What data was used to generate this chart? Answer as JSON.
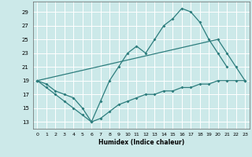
{
  "xlabel": "Humidex (Indice chaleur)",
  "xlim": [
    -0.5,
    23.5
  ],
  "ylim": [
    12,
    30.5
  ],
  "xticks": [
    0,
    1,
    2,
    3,
    4,
    5,
    6,
    7,
    8,
    9,
    10,
    11,
    12,
    13,
    14,
    15,
    16,
    17,
    18,
    19,
    20,
    21,
    22,
    23
  ],
  "yticks": [
    13,
    15,
    17,
    19,
    21,
    23,
    25,
    27,
    29
  ],
  "bg_color": "#cce9e9",
  "grid_color": "#ffffff",
  "line_color": "#2d7d7d",
  "curve1_x": [
    0,
    1,
    2,
    3,
    4,
    5,
    6,
    7,
    8,
    9,
    10,
    11,
    12,
    13,
    14,
    15,
    16,
    17,
    18,
    19,
    20,
    21
  ],
  "curve1_y": [
    19,
    18,
    17,
    16,
    15,
    14,
    13,
    16,
    19,
    21,
    23,
    24,
    23,
    25,
    27,
    28,
    29.5,
    29,
    27.5,
    25,
    23,
    21
  ],
  "curve2_x": [
    0,
    20,
    21,
    22,
    23
  ],
  "curve2_y": [
    19,
    25,
    23,
    21,
    19
  ],
  "curve3_x": [
    0,
    1,
    2,
    3,
    4,
    5,
    6,
    7,
    8,
    9,
    10,
    11,
    12,
    13,
    14,
    15,
    16,
    17,
    18,
    19,
    20,
    21,
    22,
    23
  ],
  "curve3_y": [
    19,
    18.5,
    17.5,
    17,
    16.5,
    15,
    13,
    13.5,
    14.5,
    15.5,
    16,
    16.5,
    17,
    17,
    17.5,
    17.5,
    18,
    18,
    18.5,
    18.5,
    19,
    19,
    19,
    19
  ]
}
